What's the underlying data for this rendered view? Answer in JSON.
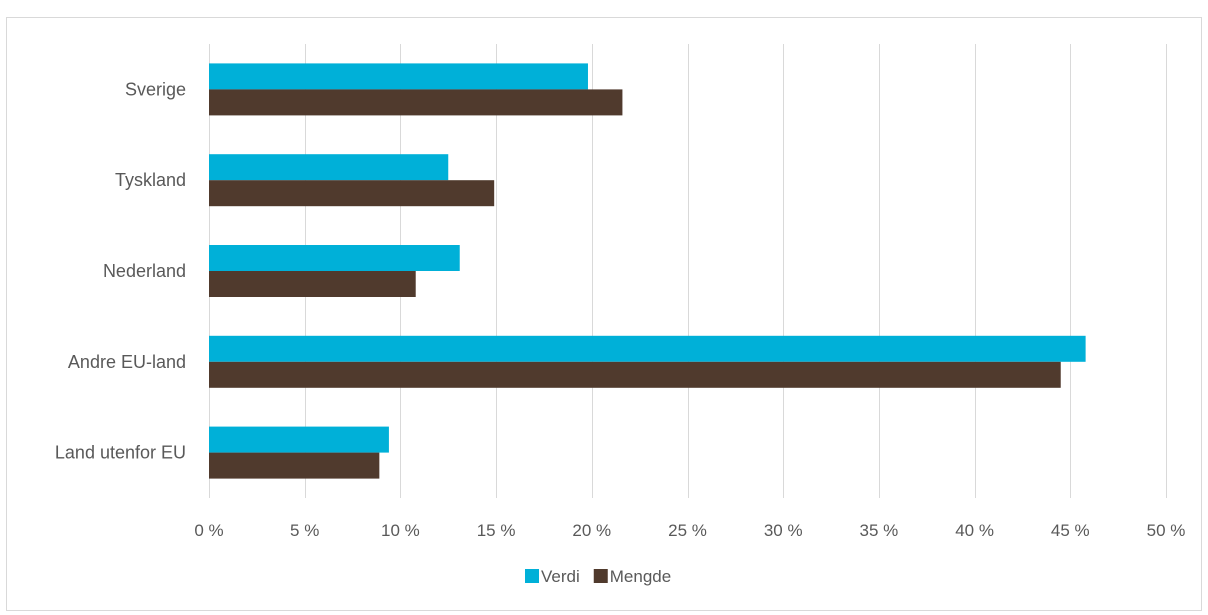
{
  "chart_data": {
    "type": "bar",
    "orientation": "horizontal",
    "categories": [
      "Sverige",
      "Tyskland",
      "Nederland",
      "Andre EU-land",
      "Land utenfor EU"
    ],
    "series": [
      {
        "name": "Verdi",
        "color": "#00b0d8",
        "values": [
          19.8,
          12.5,
          13.1,
          45.8,
          9.4
        ]
      },
      {
        "name": "Mengde",
        "color": "#503a2d",
        "values": [
          21.6,
          14.9,
          10.8,
          44.5,
          8.9
        ]
      }
    ],
    "xlim": [
      0,
      50
    ],
    "x_ticks": [
      0,
      5,
      10,
      15,
      20,
      25,
      30,
      35,
      40,
      45,
      50
    ],
    "x_tick_labels": [
      "0 %",
      "5 %",
      "10 %",
      "15 %",
      "20 %",
      "25 %",
      "30 %",
      "35 %",
      "40 %",
      "45 %",
      "50 %"
    ],
    "grid": "vertical",
    "legend_position": "bottom"
  }
}
